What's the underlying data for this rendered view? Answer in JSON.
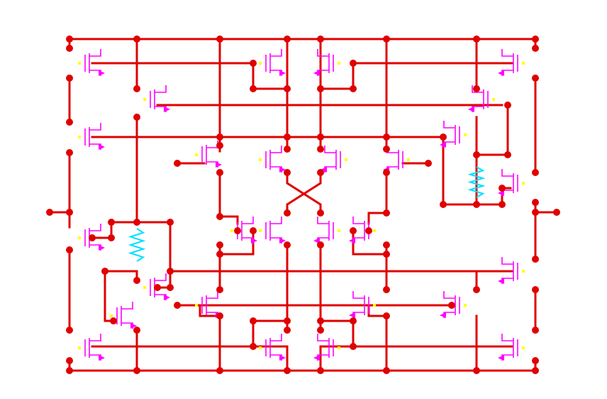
{
  "colors": {
    "background": "#ffffff",
    "wire": "#e00000",
    "transistor": "#ff00ff",
    "resistor": "#00e0ff",
    "terminal": "#ffff00"
  }
}
